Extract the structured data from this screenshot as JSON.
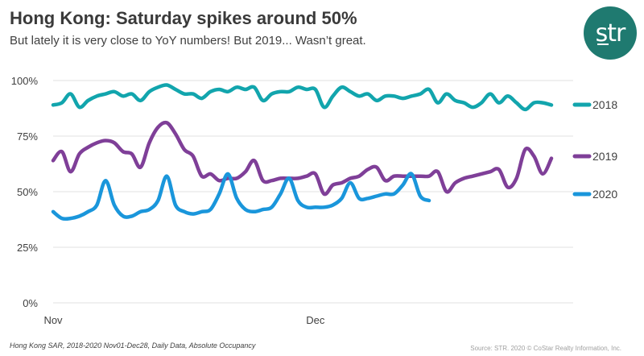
{
  "header": {
    "title": "Hong Kong: Saturday spikes around 50%",
    "subtitle": "But lately it is very close to YoY numbers! But 2019... Wasn’t great.",
    "logo_text": "str"
  },
  "footer": {
    "note": "Hong Kong SAR, 2018-2020 Nov01-Dec28, Daily Data, Absolute Occupancy",
    "source": "Source: STR. 2020 © CoStar Realty Information, Inc."
  },
  "colors": {
    "logo_bg": "#1f7a70",
    "grid": "#e6e6e6"
  },
  "chart_data": {
    "type": "line",
    "title": "Hong Kong: Saturday spikes around 50%",
    "xlabel": "",
    "ylabel": "",
    "x_start": "Nov 1",
    "x_end": "Dec 28",
    "x_ticks": [
      {
        "label": "Nov",
        "day": 0
      },
      {
        "label": "Dec",
        "day": 30
      }
    ],
    "y_ticks": [
      {
        "label": "0%",
        "value": 0
      },
      {
        "label": "25%",
        "value": 25
      },
      {
        "label": "50%",
        "value": 50
      },
      {
        "label": "75%",
        "value": 75
      },
      {
        "label": "100%",
        "value": 100
      }
    ],
    "ylim": [
      0,
      100
    ],
    "xlim": [
      0,
      57
    ],
    "grid": true,
    "legend_position": "right",
    "series": [
      {
        "name": "2018",
        "color": "#12a5ad",
        "values": [
          89,
          90,
          94,
          88,
          91,
          93,
          94,
          95,
          93,
          94,
          91,
          95,
          97,
          98,
          96,
          94,
          94,
          92,
          95,
          96,
          95,
          97,
          96,
          97,
          91,
          94,
          95,
          95,
          97,
          96,
          96,
          88,
          93,
          97,
          95,
          93,
          94,
          91,
          93,
          93,
          92,
          93,
          94,
          96,
          90,
          94,
          91,
          90,
          88,
          90,
          94,
          90,
          93,
          90,
          87,
          90,
          90,
          89
        ]
      },
      {
        "name": "2019",
        "color": "#7f3f98",
        "values": [
          64,
          68,
          59,
          67,
          70,
          72,
          73,
          72,
          68,
          67,
          61,
          72,
          79,
          81,
          76,
          69,
          66,
          57,
          58,
          55,
          56,
          56,
          59,
          64,
          55,
          55,
          56,
          56,
          56,
          57,
          58,
          49,
          53,
          54,
          56,
          57,
          60,
          61,
          55,
          57,
          57,
          57,
          57,
          57,
          59,
          50,
          54,
          56,
          57,
          58,
          59,
          60,
          52,
          56,
          69,
          66,
          58,
          65
        ]
      },
      {
        "name": "2020",
        "color": "#1a96db",
        "values": [
          41,
          38,
          38,
          39,
          41,
          44,
          55,
          44,
          39,
          39,
          41,
          42,
          46,
          57,
          44,
          41,
          40,
          41,
          42,
          49,
          58,
          47,
          42,
          41,
          42,
          43,
          49,
          56,
          46,
          43,
          43,
          43,
          44,
          47,
          54,
          47,
          47,
          48,
          49,
          49,
          53,
          58,
          48,
          46
        ]
      }
    ]
  }
}
